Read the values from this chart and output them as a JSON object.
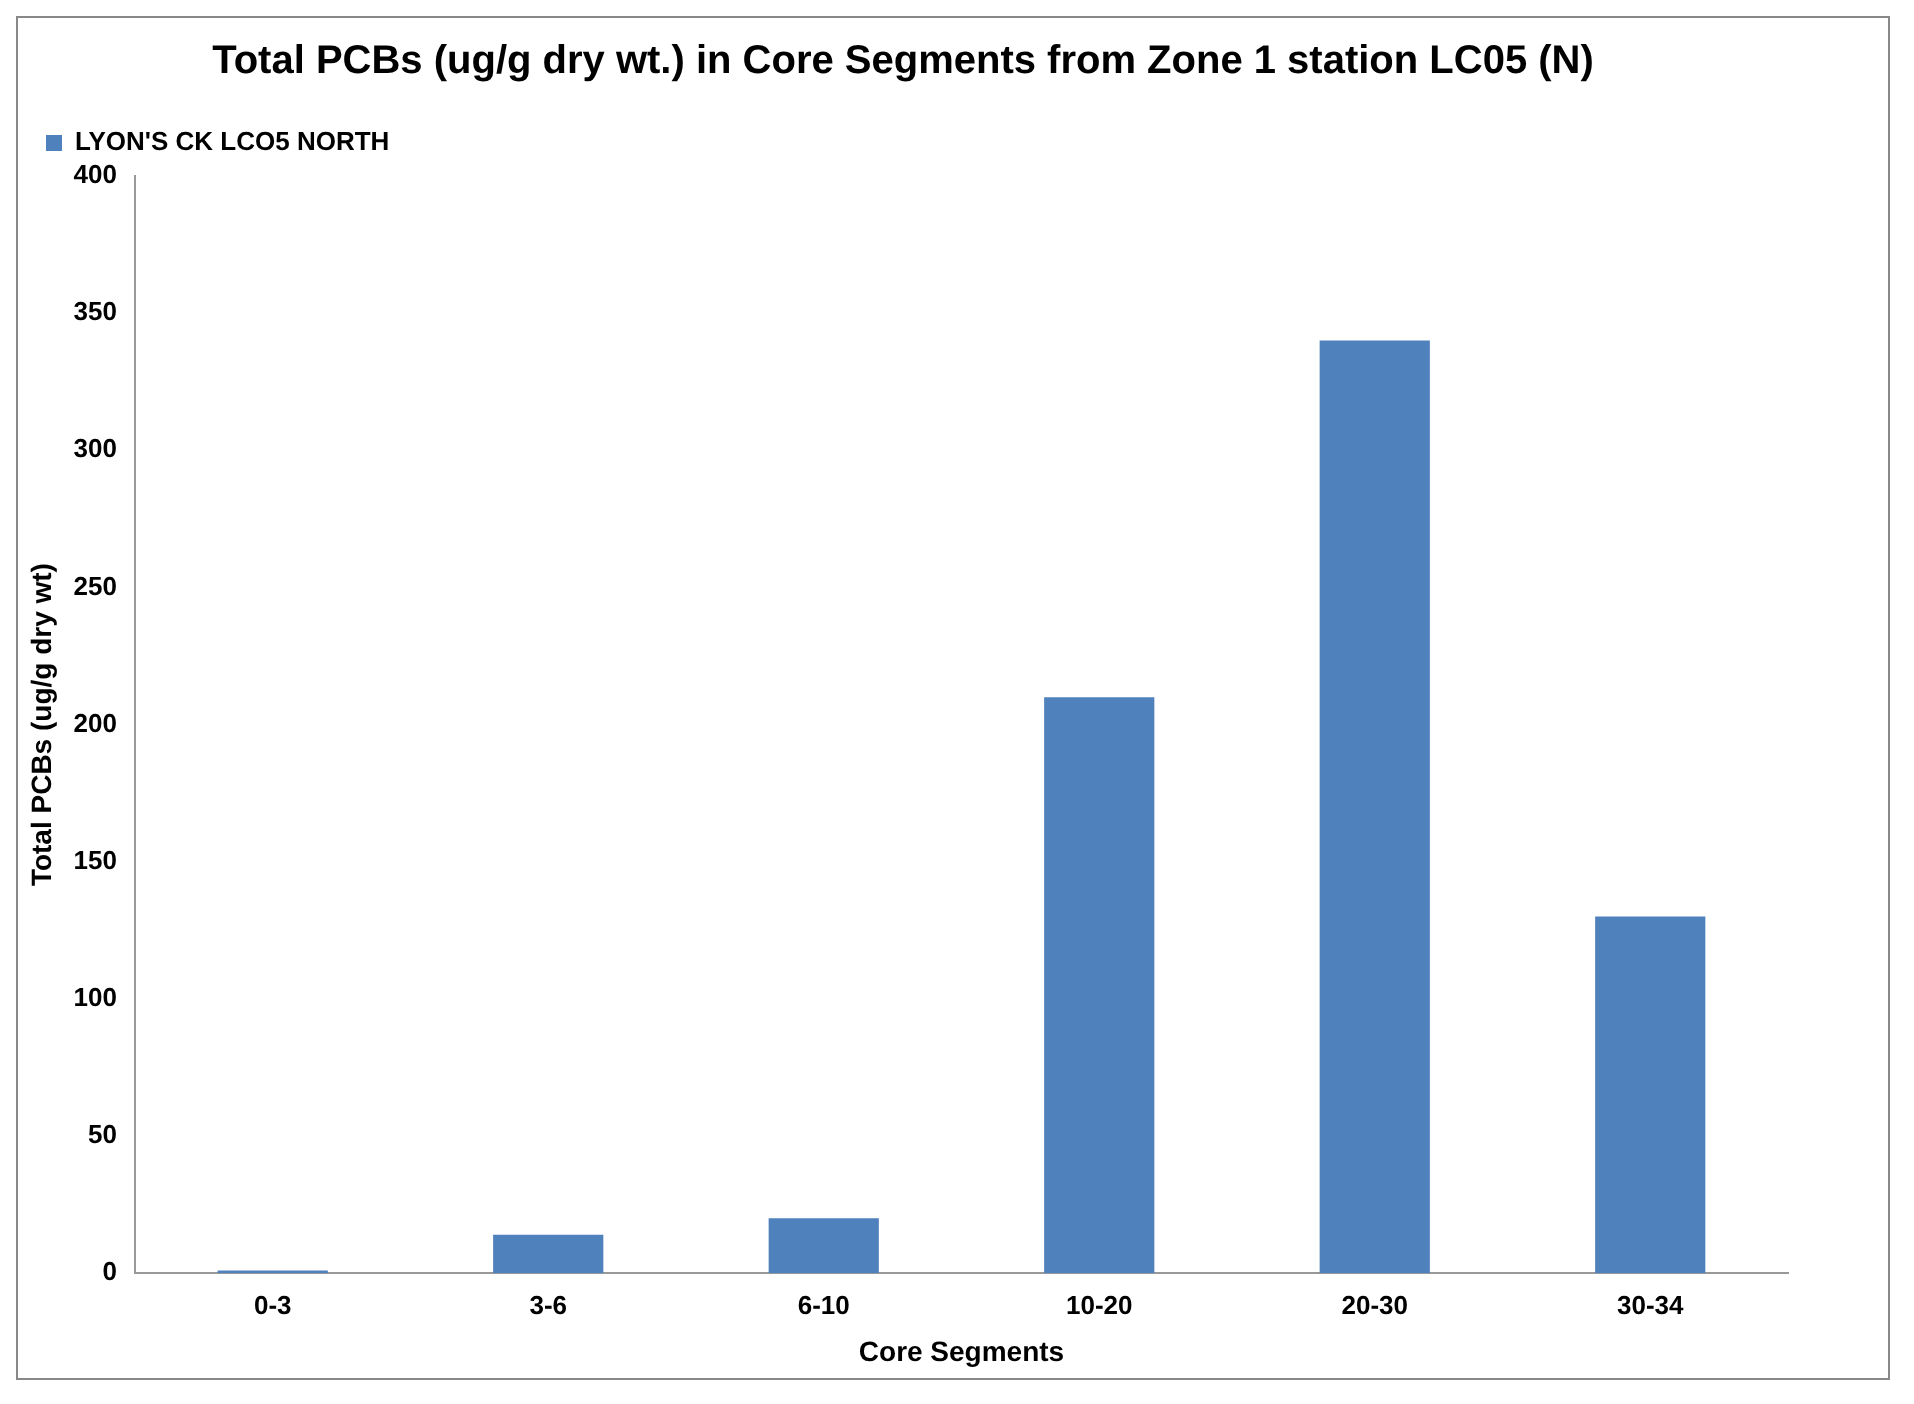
{
  "chart_data": {
    "type": "bar",
    "title": "Total PCBs (ug/g dry wt.) in Core Segments from Zone 1 station LC05 (N)",
    "xlabel": "Core Segments",
    "ylabel": "Total PCBs (ug/g dry wt)",
    "categories": [
      "0-3",
      "3-6",
      "6-10",
      "10-20",
      "20-30",
      "30-34"
    ],
    "series": [
      {
        "name": "LYON'S CK LCO5 NORTH",
        "color": "#4f81bd",
        "values": [
          1,
          14,
          20,
          210,
          340,
          130
        ]
      }
    ],
    "ylim": [
      0,
      400
    ],
    "yticks": [
      0,
      50,
      100,
      150,
      200,
      250,
      300,
      350,
      400
    ],
    "grid": false,
    "legend": "top left"
  }
}
